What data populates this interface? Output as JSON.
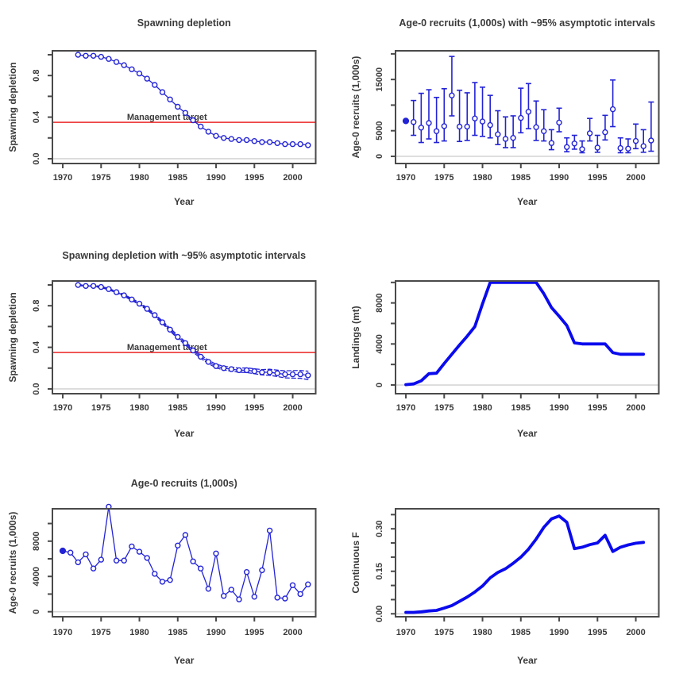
{
  "page": {
    "background": "#ffffff"
  },
  "colors": {
    "series_blue": "#2323d6",
    "thick_blue": "#0a0aee",
    "target_red": "#ee4444",
    "zero_gray": "#d6d6d6",
    "frame_gray": "#4a4a4a",
    "text_gray": "#3a3a3a"
  },
  "chart_data": [
    {
      "type": "line",
      "title": "Spawning depletion",
      "ylabel": "Spawning depletion",
      "xlabel": "Year",
      "first_filled": false,
      "years": [
        1972,
        1973,
        1974,
        1975,
        1976,
        1977,
        1978,
        1979,
        1980,
        1981,
        1982,
        1983,
        1984,
        1985,
        1986,
        1987,
        1988,
        1989,
        1990,
        1991,
        1992,
        1993,
        1994,
        1995,
        1996,
        1997,
        1998,
        1999,
        2000,
        2001,
        2002
      ],
      "values": [
        1.0,
        0.99,
        0.99,
        0.98,
        0.96,
        0.93,
        0.9,
        0.86,
        0.82,
        0.77,
        0.71,
        0.64,
        0.57,
        0.5,
        0.44,
        0.37,
        0.31,
        0.26,
        0.22,
        0.2,
        0.19,
        0.18,
        0.18,
        0.17,
        0.16,
        0.16,
        0.15,
        0.14,
        0.14,
        0.14,
        0.13
      ],
      "target": {
        "value": 0.35,
        "label": "Management target",
        "label_x": 1983.6
      },
      "xlim": [
        1968.65,
        2003.0
      ],
      "ylim": [
        -0.046,
        1.038
      ],
      "xticks": [
        [
          1970,
          "1970"
        ],
        [
          1975,
          "1975"
        ],
        [
          1980,
          "1980"
        ],
        [
          1985,
          "1985"
        ],
        [
          1990,
          "1990"
        ],
        [
          1995,
          "1995"
        ],
        [
          2000,
          "2000"
        ]
      ],
      "yticks": [
        [
          0,
          "0.0"
        ],
        [
          0.2,
          ""
        ],
        [
          0.4,
          "0.4"
        ],
        [
          0.6,
          ""
        ],
        [
          0.8,
          "0.8"
        ],
        [
          1.0,
          ""
        ]
      ],
      "zero_line": true,
      "grid": false
    },
    {
      "type": "errorbar",
      "title": "Age-0 recruits (1,000s) with ~95% asymptotic intervals",
      "ylabel": "Age-0 recruits (1,000s)",
      "xlabel": "Year",
      "initial_point": {
        "year": 1970,
        "value": 6900,
        "filled": true
      },
      "years": [
        1971,
        1972,
        1973,
        1974,
        1975,
        1976,
        1977,
        1978,
        1979,
        1980,
        1981,
        1982,
        1983,
        1984,
        1985,
        1986,
        1987,
        1988,
        1989,
        1990,
        1991,
        1992,
        1993,
        1994,
        1995,
        1996,
        1997,
        1998,
        1999,
        2000,
        2001,
        2002
      ],
      "values": [
        6700,
        5600,
        6500,
        4900,
        5900,
        11900,
        5800,
        5800,
        7400,
        6800,
        6100,
        4300,
        3400,
        3600,
        7500,
        8700,
        5700,
        4900,
        2600,
        6600,
        1800,
        2500,
        1400,
        4500,
        1700,
        4700,
        9200,
        1600,
        1500,
        3000,
        2000,
        3100
      ],
      "ci_lo": [
        4100,
        2700,
        3400,
        2700,
        3000,
        7900,
        2900,
        3100,
        4100,
        3900,
        3600,
        2300,
        1700,
        1700,
        4600,
        5400,
        3100,
        3000,
        1300,
        4800,
        900,
        1400,
        700,
        3000,
        800,
        3200,
        5800,
        700,
        700,
        1500,
        800,
        1000
      ],
      "ci_hi": [
        10900,
        12300,
        13000,
        11500,
        13200,
        19500,
        12900,
        12400,
        14400,
        13500,
        11900,
        8900,
        7700,
        7900,
        13300,
        14200,
        10800,
        9100,
        5200,
        9400,
        3600,
        4100,
        3000,
        7400,
        4100,
        8000,
        14900,
        3600,
        3400,
        6300,
        5200,
        10600
      ],
      "xlim": [
        1968.65,
        2003.0
      ],
      "ylim": [
        -1400,
        20600
      ],
      "xticks": [
        [
          1970,
          "1970"
        ],
        [
          1975,
          "1975"
        ],
        [
          1980,
          "1980"
        ],
        [
          1985,
          "1985"
        ],
        [
          1990,
          "1990"
        ],
        [
          1995,
          "1995"
        ],
        [
          2000,
          "2000"
        ]
      ],
      "yticks": [
        [
          0,
          "0"
        ],
        [
          5000,
          "5000"
        ],
        [
          10000,
          ""
        ],
        [
          15000,
          "15000"
        ],
        [
          20000,
          ""
        ]
      ],
      "zero_line": true,
      "grid": false
    },
    {
      "type": "line-ci",
      "title": "Spawning depletion with ~95% asymptotic intervals",
      "ylabel": "Spawning depletion",
      "xlabel": "Year",
      "first_filled": false,
      "years": [
        1972,
        1973,
        1974,
        1975,
        1976,
        1977,
        1978,
        1979,
        1980,
        1981,
        1982,
        1983,
        1984,
        1985,
        1986,
        1987,
        1988,
        1989,
        1990,
        1991,
        1992,
        1993,
        1994,
        1995,
        1996,
        1997,
        1998,
        1999,
        2000,
        2001,
        2002
      ],
      "values": [
        1.0,
        0.99,
        0.99,
        0.98,
        0.96,
        0.93,
        0.9,
        0.86,
        0.82,
        0.77,
        0.71,
        0.64,
        0.57,
        0.5,
        0.44,
        0.37,
        0.31,
        0.26,
        0.22,
        0.2,
        0.19,
        0.18,
        0.18,
        0.17,
        0.16,
        0.16,
        0.15,
        0.14,
        0.14,
        0.14,
        0.13
      ],
      "ci_width": [
        0.005,
        0.005,
        0.005,
        0.006,
        0.006,
        0.007,
        0.008,
        0.009,
        0.01,
        0.011,
        0.012,
        0.013,
        0.014,
        0.015,
        0.015,
        0.016,
        0.016,
        0.017,
        0.017,
        0.018,
        0.019,
        0.02,
        0.022,
        0.024,
        0.026,
        0.029,
        0.031,
        0.034,
        0.036,
        0.038,
        0.04
      ],
      "target": {
        "value": 0.35,
        "label": "Management target",
        "label_x": 1983.6
      },
      "xlim": [
        1968.65,
        2003.0
      ],
      "ylim": [
        -0.046,
        1.038
      ],
      "xticks": [
        [
          1970,
          "1970"
        ],
        [
          1975,
          "1975"
        ],
        [
          1980,
          "1980"
        ],
        [
          1985,
          "1985"
        ],
        [
          1990,
          "1990"
        ],
        [
          1995,
          "1995"
        ],
        [
          2000,
          "2000"
        ]
      ],
      "yticks": [
        [
          0,
          "0.0"
        ],
        [
          0.2,
          ""
        ],
        [
          0.4,
          "0.4"
        ],
        [
          0.6,
          ""
        ],
        [
          0.8,
          "0.8"
        ],
        [
          1.0,
          ""
        ]
      ],
      "zero_line": true,
      "grid": false
    },
    {
      "type": "thickline",
      "title": "",
      "ylabel": "Landings (mt)",
      "xlabel": "Year",
      "years": [
        1970,
        1971,
        1972,
        1973,
        1974,
        1975,
        1976,
        1977,
        1978,
        1979,
        1980,
        1981,
        1982,
        1983,
        1984,
        1985,
        1986,
        1987,
        1988,
        1989,
        1990,
        1991,
        1992,
        1993,
        1994,
        1995,
        1996,
        1997,
        1998,
        1999,
        2000,
        2001
      ],
      "values": [
        30,
        100,
        400,
        1100,
        1150,
        2100,
        3000,
        3900,
        4750,
        5700,
        7900,
        10000,
        10000,
        10000,
        10000,
        10000,
        10000,
        10000,
        8900,
        7550,
        6700,
        5800,
        4100,
        4000,
        4000,
        4000,
        4000,
        3150,
        3000,
        3000,
        3000,
        3000
      ],
      "xlim": [
        1968.65,
        2003.0
      ],
      "ylim": [
        -850,
        10140
      ],
      "xticks": [
        [
          1970,
          "1970"
        ],
        [
          1975,
          "1975"
        ],
        [
          1980,
          "1980"
        ],
        [
          1985,
          "1985"
        ],
        [
          1990,
          "1990"
        ],
        [
          1995,
          "1995"
        ],
        [
          2000,
          "2000"
        ]
      ],
      "yticks": [
        [
          0,
          "0"
        ],
        [
          2000,
          ""
        ],
        [
          4000,
          "4000"
        ],
        [
          6000,
          ""
        ],
        [
          8000,
          "8000"
        ],
        [
          10000,
          ""
        ]
      ],
      "zero_line": true,
      "grid": false
    },
    {
      "type": "line",
      "title": "Age-0 recruits (1,000s)",
      "ylabel": "Age-0 recruits (1,000s)",
      "xlabel": "Year",
      "first_filled": true,
      "years": [
        1970,
        1971,
        1972,
        1973,
        1974,
        1975,
        1976,
        1977,
        1978,
        1979,
        1980,
        1981,
        1982,
        1983,
        1984,
        1985,
        1986,
        1987,
        1988,
        1989,
        1990,
        1991,
        1992,
        1993,
        1994,
        1995,
        1996,
        1997,
        1998,
        1999,
        2000,
        2001,
        2002
      ],
      "values": [
        6900,
        6700,
        5600,
        6500,
        4900,
        5900,
        11900,
        5800,
        5800,
        7400,
        6800,
        6100,
        4300,
        3400,
        3600,
        7500,
        8700,
        5700,
        4900,
        2600,
        6600,
        1800,
        2500,
        1400,
        4500,
        1700,
        4700,
        9200,
        1600,
        1500,
        3000,
        2000,
        3100
      ],
      "xlim": [
        1968.65,
        2003.0
      ],
      "ylim": [
        -570,
        11670
      ],
      "xticks": [
        [
          1970,
          "1970"
        ],
        [
          1975,
          "1975"
        ],
        [
          1980,
          "1980"
        ],
        [
          1985,
          "1985"
        ],
        [
          1990,
          "1990"
        ],
        [
          1995,
          "1995"
        ],
        [
          2000,
          "2000"
        ]
      ],
      "yticks": [
        [
          0,
          "0"
        ],
        [
          2000,
          ""
        ],
        [
          4000,
          "4000"
        ],
        [
          6000,
          ""
        ],
        [
          8000,
          "8000"
        ],
        [
          10000,
          ""
        ]
      ],
      "zero_line": true,
      "grid": false
    },
    {
      "type": "thickline",
      "title": "",
      "ylabel": "Continuous F",
      "xlabel": "Year",
      "years": [
        1970,
        1971,
        1972,
        1973,
        1974,
        1975,
        1976,
        1977,
        1978,
        1979,
        1980,
        1981,
        1982,
        1983,
        1984,
        1985,
        1986,
        1987,
        1988,
        1989,
        1990,
        1991,
        1992,
        1993,
        1994,
        1995,
        1996,
        1997,
        1998,
        1999,
        2000,
        2001
      ],
      "values": [
        0.005,
        0.005,
        0.007,
        0.01,
        0.012,
        0.02,
        0.029,
        0.044,
        0.059,
        0.077,
        0.098,
        0.127,
        0.146,
        0.159,
        0.178,
        0.2,
        0.228,
        0.264,
        0.305,
        0.335,
        0.345,
        0.323,
        0.23,
        0.235,
        0.244,
        0.25,
        0.277,
        0.22,
        0.235,
        0.243,
        0.249,
        0.252
      ],
      "xlim": [
        1968.65,
        2003.0
      ],
      "ylim": [
        -0.0104,
        0.3706
      ],
      "xticks": [
        [
          1970,
          "1970"
        ],
        [
          1975,
          "1975"
        ],
        [
          1980,
          "1980"
        ],
        [
          1985,
          "1985"
        ],
        [
          1990,
          "1990"
        ],
        [
          1995,
          "1995"
        ],
        [
          2000,
          "2000"
        ]
      ],
      "yticks": [
        [
          0,
          "0.00"
        ],
        [
          0.05,
          ""
        ],
        [
          0.1,
          ""
        ],
        [
          0.15,
          "0.15"
        ],
        [
          0.2,
          ""
        ],
        [
          0.25,
          ""
        ],
        [
          0.3,
          "0.30"
        ],
        [
          0.35,
          ""
        ]
      ],
      "zero_line": true,
      "grid": false
    }
  ]
}
